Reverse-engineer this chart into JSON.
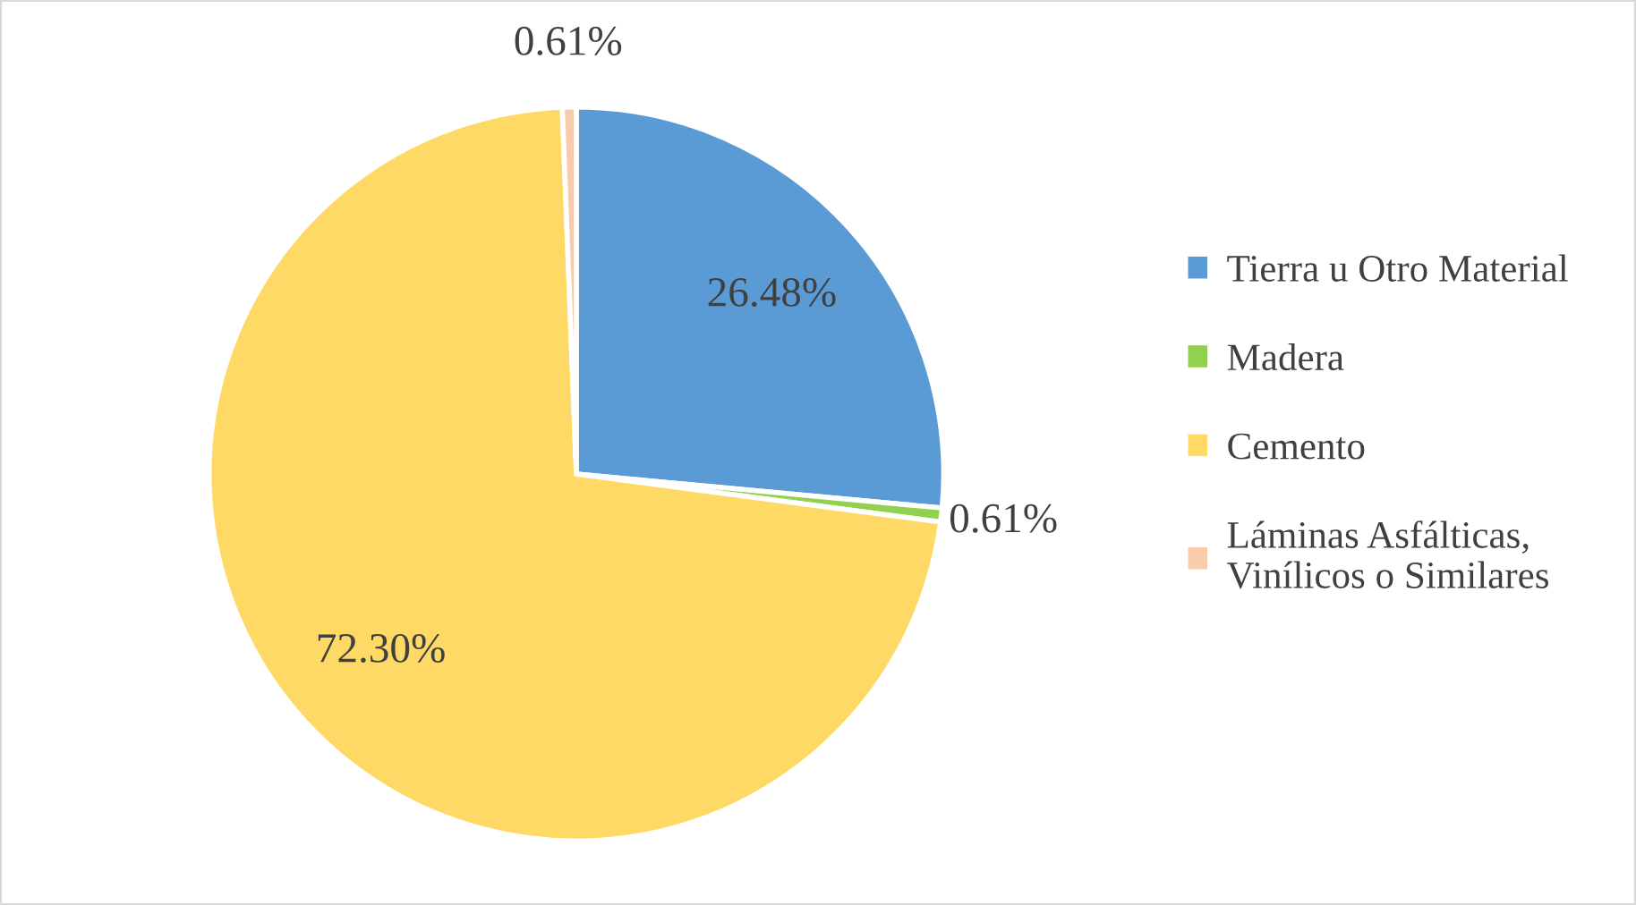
{
  "chart_data": {
    "type": "pie",
    "categories": [
      "Tierra u Otro Material",
      "Madera",
      "Cemento",
      "Láminas Asfálticas,\nVinílicos o Similares"
    ],
    "values": [
      26.48,
      0.61,
      72.3,
      0.61
    ],
    "colors": [
      "#5b9bd5",
      "#92d050",
      "#ffd966",
      "#f8cbad"
    ],
    "value_labels": [
      "26.48%",
      "0.61%",
      "72.30%",
      "0.61%"
    ],
    "legend": "right"
  }
}
